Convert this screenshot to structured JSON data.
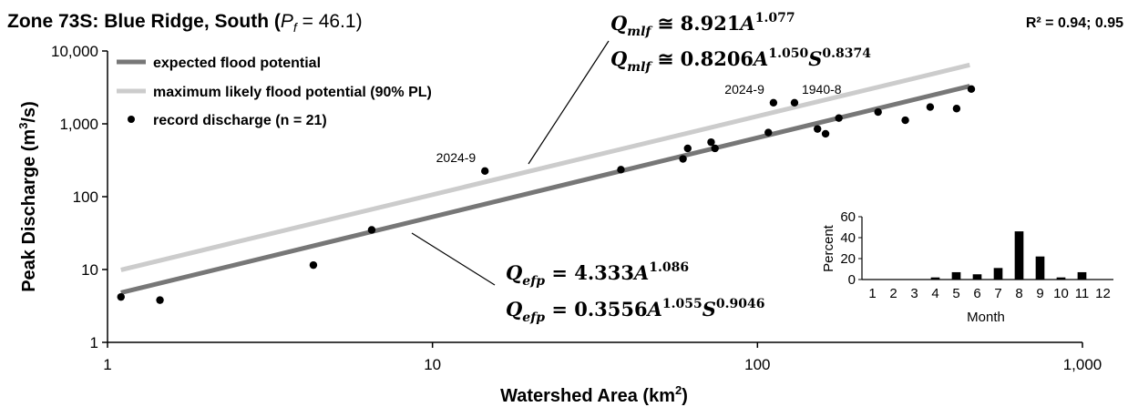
{
  "chart_data": [
    {
      "type": "scatter",
      "title_main": "Zone 73S: Blue Ridge, South (",
      "title_pf": "P",
      "title_pf_sub": "f",
      "title_pf_value": " = 46.1)",
      "r2": "R² = 0.94; 0.95",
      "xlabel": "Watershed Area (km",
      "xlabel_sup": "2",
      "xlabel_end": ")",
      "ylabel": "Peak Discharge (m",
      "ylabel_sup": "3",
      "ylabel_end": "/s)",
      "xscale": "log",
      "yscale": "log",
      "xlim": [
        1,
        1000
      ],
      "ylim": [
        1,
        10000
      ],
      "x_ticks": [
        {
          "value": 1,
          "label": "1"
        },
        {
          "value": 10,
          "label": "10"
        },
        {
          "value": 100,
          "label": "100"
        },
        {
          "value": 1000,
          "label": "1,000"
        }
      ],
      "y_ticks": [
        {
          "value": 1,
          "label": "1"
        },
        {
          "value": 10,
          "label": "10"
        },
        {
          "value": 100,
          "label": "100"
        },
        {
          "value": 1000,
          "label": "1,000"
        },
        {
          "value": 10000,
          "label": "10,000"
        }
      ],
      "legend": [
        {
          "label": "expected flood potential",
          "kind": "line",
          "color": "#777777"
        },
        {
          "label": "maximum likely flood potential (90% PL)",
          "kind": "line",
          "color": "#cccccc"
        },
        {
          "label": "record discharge (n = 21)",
          "kind": "dot",
          "color": "#000000"
        }
      ],
      "lines": [
        {
          "name": "expected flood potential",
          "coef": 4.333,
          "exp": 1.086,
          "x_range": [
            1.1,
            450
          ],
          "color": "#777777"
        },
        {
          "name": "maximum likely flood potential (90% PL)",
          "coef": 8.921,
          "exp": 1.077,
          "x_range": [
            1.1,
            450
          ],
          "color": "#cccccc"
        }
      ],
      "points": [
        {
          "x": 1.1,
          "y": 4.2
        },
        {
          "x": 1.45,
          "y": 3.8
        },
        {
          "x": 4.3,
          "y": 11.5
        },
        {
          "x": 6.5,
          "y": 35
        },
        {
          "x": 14.5,
          "y": 225
        },
        {
          "x": 38,
          "y": 235
        },
        {
          "x": 59,
          "y": 330
        },
        {
          "x": 61,
          "y": 460
        },
        {
          "x": 72,
          "y": 560
        },
        {
          "x": 74,
          "y": 460
        },
        {
          "x": 108,
          "y": 760
        },
        {
          "x": 112,
          "y": 1950
        },
        {
          "x": 130,
          "y": 1950
        },
        {
          "x": 153,
          "y": 850
        },
        {
          "x": 162,
          "y": 730
        },
        {
          "x": 178,
          "y": 1200
        },
        {
          "x": 235,
          "y": 1450
        },
        {
          "x": 285,
          "y": 1120
        },
        {
          "x": 340,
          "y": 1700
        },
        {
          "x": 410,
          "y": 1620
        },
        {
          "x": 455,
          "y": 3000
        }
      ],
      "point_labels": [
        {
          "text": "2024-9",
          "x": 14.5,
          "y": 225,
          "anchor": "end"
        },
        {
          "text": "2024-9",
          "x": 112,
          "y": 1950,
          "anchor": "end"
        },
        {
          "text": "1940-8",
          "x": 130,
          "y": 1950,
          "anchor": "start"
        }
      ],
      "equations": {
        "mlf_1": {
          "var": "Q",
          "sub": "mlf",
          "rel": " ≅ ",
          "body": "8.921",
          "base": "A",
          "exp": "1.077"
        },
        "mlf_2": {
          "var": "Q",
          "sub": "mlf",
          "rel": " ≅ ",
          "body": "0.8206",
          "base": "A",
          "exp": "1.050",
          "base2": "S",
          "exp2": "0.8374"
        },
        "efp_1": {
          "var": "Q",
          "sub": "efp",
          "rel": " = ",
          "body": "4.333",
          "base": "A",
          "exp": "1.086"
        },
        "efp_2": {
          "var": "Q",
          "sub": "efp",
          "rel": " = ",
          "body": "0.3556",
          "base": "A",
          "exp": "1.055",
          "base2": "S",
          "exp2": "0.9046"
        }
      }
    },
    {
      "type": "bar",
      "xlabel": "Month",
      "ylabel": "Percent",
      "categories": [
        "1",
        "2",
        "3",
        "4",
        "5",
        "6",
        "7",
        "8",
        "9",
        "10",
        "11",
        "12"
      ],
      "values": [
        0,
        0,
        0,
        2,
        7,
        5,
        11,
        46,
        22,
        2,
        7,
        0
      ],
      "ylim": [
        0,
        60
      ],
      "y_ticks": [
        {
          "value": 0,
          "label": "0"
        },
        {
          "value": 20,
          "label": "20"
        },
        {
          "value": 40,
          "label": "40"
        },
        {
          "value": 60,
          "label": "60"
        }
      ]
    }
  ]
}
